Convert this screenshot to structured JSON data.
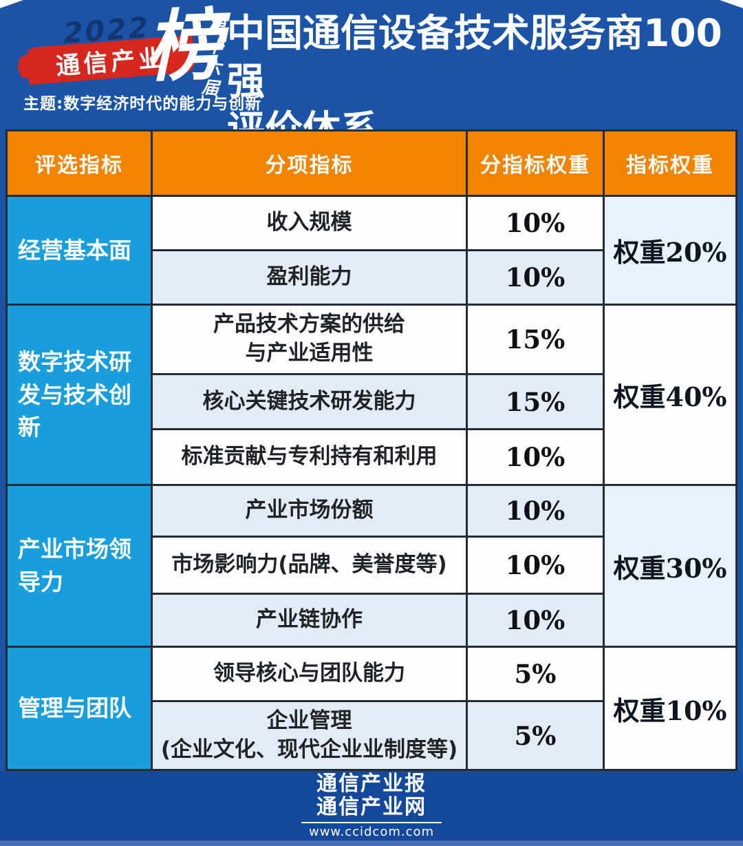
{
  "header": {
    "logo": {
      "year": "2022",
      "brand": "通信产业",
      "list_character": "榜",
      "edition": "第十六届",
      "theme": "主题:数字经济时代的能力与创新"
    },
    "title_line1": "中国通信设备技术服务商100强",
    "title_line2": "评价体系"
  },
  "table": {
    "columns": [
      "评选指标",
      "分项指标",
      "分指标权重",
      "指标权重"
    ],
    "groups": [
      {
        "name": "经营基本面",
        "weight_label": "权重20%",
        "rows": [
          {
            "indicator": "收入规模",
            "weight": "10%"
          },
          {
            "indicator": "盈利能力",
            "weight": "10%"
          }
        ]
      },
      {
        "name": "数字技术研发与技术创新",
        "weight_label": "权重40%",
        "rows": [
          {
            "indicator": "产品技术方案的供给\n与产业适用性",
            "weight": "15%"
          },
          {
            "indicator": "核心关键技术研发能力",
            "weight": "15%"
          },
          {
            "indicator": "标准贡献与专利持有和利用",
            "weight": "10%"
          }
        ]
      },
      {
        "name": "产业市场领导力",
        "weight_label": "权重30%",
        "rows": [
          {
            "indicator": "产业市场份额",
            "weight": "10%"
          },
          {
            "indicator": "市场影响力(品牌、美誉度等)",
            "weight": "10%"
          },
          {
            "indicator": "产业链协作",
            "weight": "10%"
          }
        ]
      },
      {
        "name": "管理与团队",
        "weight_label": "权重10%",
        "rows": [
          {
            "indicator": "领导核心与团队能力",
            "weight": "5%"
          },
          {
            "indicator": "企业管理\n(企业文化、现代企业业制度等)",
            "weight": "5%"
          }
        ]
      }
    ]
  },
  "footer": {
    "brand_line1": "通信产业报",
    "brand_line2": "通信产业网",
    "url": "www.ccidcom.com"
  },
  "colors": {
    "page_bg": "#1a53a7",
    "header_orange": "#f08300",
    "group_cyan": "#199edd",
    "row_light_blue": "#e2ecf7",
    "weight_light_blue": "#e7f3fc",
    "border_navy": "#222b38",
    "brand_red": "#d5271d",
    "footer_bg": "#14489c"
  }
}
